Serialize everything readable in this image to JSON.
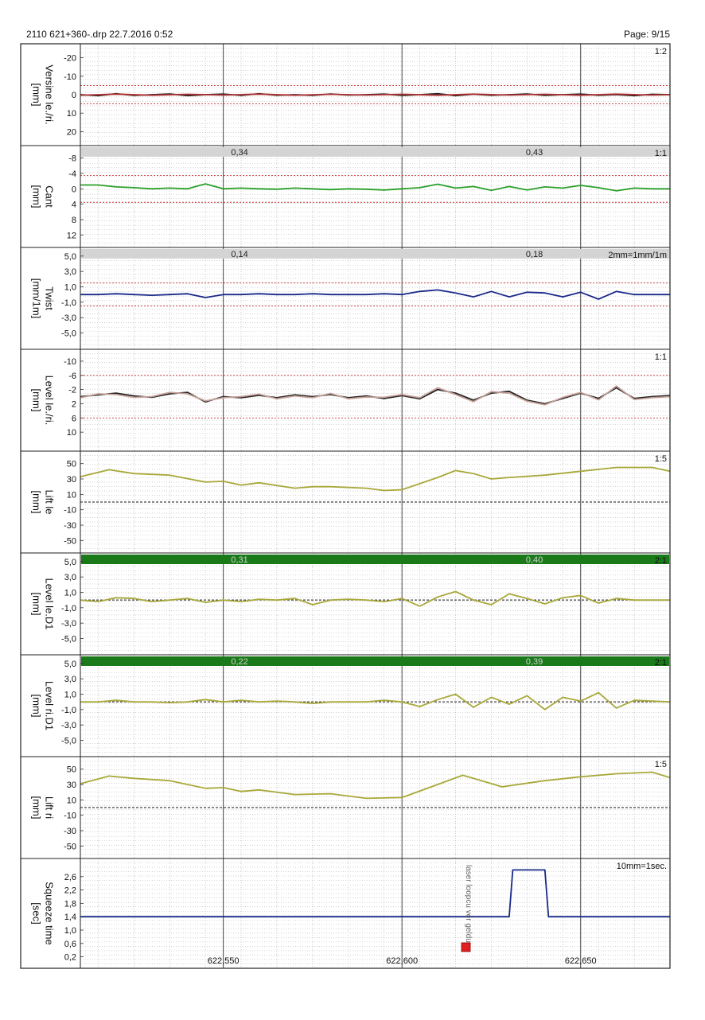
{
  "header": {
    "file_info": "2110 621+360-.drp   22.7.2016  0:52",
    "page": "Page: 9/15"
  },
  "chart_data": [
    {
      "type": "line",
      "ylabel": "Versine le./ri.",
      "unit": "[mm]",
      "scale": "1:2",
      "ylim": [
        -25,
        25
      ],
      "inverted": true,
      "ticks": [
        "-20",
        "-10",
        "0",
        "10",
        "20"
      ],
      "tick_values": [
        -20,
        -10,
        0,
        10,
        20
      ],
      "limits": [
        -5,
        5
      ],
      "bar": null,
      "series": [
        {
          "color": "#222222",
          "x": [
            622510,
            622515,
            622520,
            622525,
            622530,
            622535,
            622540,
            622545,
            622550,
            622555,
            622560,
            622565,
            622570,
            622575,
            622580,
            622585,
            622590,
            622595,
            622600,
            622605,
            622610,
            622615,
            622620,
            622625,
            622630,
            622635,
            622640,
            622645,
            622650,
            622655,
            622660,
            622665,
            622670,
            622675
          ],
          "values": [
            0,
            0.5,
            -0.5,
            0.4,
            0,
            -0.4,
            0.5,
            0,
            -0.3,
            0.4,
            -0.5,
            0.3,
            0,
            0.4,
            -0.4,
            0.2,
            0,
            -0.3,
            0.4,
            0,
            -0.5,
            0.5,
            -0.2,
            0.3,
            0,
            -0.4,
            0.4,
            0,
            -0.3,
            0.3,
            0,
            0.5,
            -0.2,
            0
          ]
        },
        {
          "color": "#b03030",
          "x": [
            622510,
            622520,
            622530,
            622540,
            622550,
            622560,
            622570,
            622580,
            622590,
            622600,
            622610,
            622620,
            622630,
            622640,
            622650,
            622660,
            622670,
            622675
          ],
          "values": [
            0.3,
            -0.3,
            0.3,
            -0.2,
            0.2,
            -0.3,
            0.3,
            -0.2,
            0.2,
            -0.2,
            0.3,
            -0.3,
            0.2,
            -0.2,
            0.3,
            -0.3,
            0.2,
            0
          ]
        }
      ]
    },
    {
      "type": "line",
      "ylabel": "Cant",
      "unit": "[mm]",
      "scale": "1:1",
      "ylim": [
        -10,
        14
      ],
      "inverted": true,
      "ticks": [
        "-8",
        "-4",
        "0",
        "4",
        "8",
        "12"
      ],
      "tick_values": [
        -8,
        -4,
        0,
        4,
        8,
        12
      ],
      "limits": [
        -3.5,
        3.5
      ],
      "bar": {
        "color": "#d4d4d4",
        "labels": [
          "0,34",
          "0,43"
        ]
      },
      "series": [
        {
          "color": "#2aa02a",
          "x": [
            622510,
            622515,
            622520,
            622525,
            622530,
            622535,
            622540,
            622545,
            622550,
            622555,
            622560,
            622565,
            622570,
            622575,
            622580,
            622585,
            622590,
            622595,
            622600,
            622605,
            622610,
            622615,
            622620,
            622625,
            622630,
            622635,
            622640,
            622645,
            622650,
            622655,
            622660,
            622665,
            622670,
            622675
          ],
          "values": [
            -1,
            -1,
            -0.5,
            -0.3,
            0,
            -0.2,
            0,
            -1.3,
            0,
            -0.2,
            0,
            0.1,
            -0.2,
            0,
            0.2,
            0,
            0.1,
            0.3,
            0,
            -0.3,
            -1.2,
            -0.2,
            -0.6,
            0.4,
            -0.6,
            0.3,
            -0.5,
            -0.2,
            -0.9,
            -0.3,
            0.5,
            -0.2,
            0,
            0
          ]
        }
      ]
    },
    {
      "type": "line",
      "ylabel": "Twist",
      "unit": "[mm/1m]",
      "scale": "2mm=1mm/1m",
      "ylim": [
        -6.5,
        5.5
      ],
      "inverted": false,
      "ticks": [
        "5,0",
        "3,0",
        "1,0",
        "-1,0",
        "-3,0",
        "-5,0"
      ],
      "tick_values": [
        5,
        3,
        1,
        -1,
        -3,
        -5
      ],
      "limits": [
        -1.5,
        1.5
      ],
      "bar": {
        "color": "#d4d4d4",
        "labels": [
          "0,14",
          "0,18"
        ]
      },
      "series": [
        {
          "color": "#1a2a8a",
          "x": [
            622510,
            622515,
            622520,
            622525,
            622530,
            622535,
            622540,
            622545,
            622550,
            622555,
            622560,
            622565,
            622570,
            622575,
            622580,
            622585,
            622590,
            622595,
            622600,
            622605,
            622610,
            622615,
            622620,
            622625,
            622630,
            622635,
            622640,
            622645,
            622650,
            622655,
            622660,
            622665,
            622670,
            622675
          ],
          "values": [
            0,
            0,
            0.1,
            0,
            -0.1,
            0,
            0.1,
            -0.4,
            0,
            0,
            0.1,
            0,
            0,
            0.1,
            0,
            0,
            0,
            0.1,
            0,
            0.4,
            0.6,
            0.2,
            -0.3,
            0.4,
            -0.3,
            0.3,
            0.2,
            -0.3,
            0.3,
            -0.6,
            0.4,
            0,
            0,
            0
          ]
        }
      ]
    },
    {
      "type": "line",
      "ylabel": "Level le./ri.",
      "unit": "[mm]",
      "scale": "1:1",
      "ylim": [
        -12,
        14
      ],
      "inverted": true,
      "ticks": [
        "-10",
        "-6",
        "-2",
        "2",
        "6",
        "10"
      ],
      "tick_values": [
        -10,
        -6,
        -2,
        2,
        6,
        10
      ],
      "limits": [
        -6,
        6
      ],
      "bar": null,
      "series": [
        {
          "color": "#222222",
          "x": [
            622510,
            622515,
            622520,
            622525,
            622530,
            622535,
            622540,
            622545,
            622550,
            622555,
            622560,
            622565,
            622570,
            622575,
            622580,
            622585,
            622590,
            622595,
            622600,
            622605,
            622610,
            622615,
            622620,
            622625,
            622630,
            622635,
            622640,
            622645,
            622650,
            622655,
            622660,
            622665,
            622670,
            622675
          ],
          "values": [
            0,
            -0.5,
            -1,
            -0.2,
            0.2,
            -0.8,
            -1.2,
            1.5,
            0,
            0.3,
            -0.4,
            0.3,
            -0.5,
            0,
            -0.6,
            0.3,
            -0.2,
            0.5,
            -0.3,
            0.6,
            -2,
            -1,
            1,
            -1,
            -1.5,
            1,
            2,
            0.5,
            -1,
            0.5,
            -2.5,
            0.5,
            0,
            -0.3
          ]
        },
        {
          "color": "#c4a098",
          "x": [
            622510,
            622515,
            622520,
            622525,
            622530,
            622535,
            622540,
            622545,
            622550,
            622555,
            622560,
            622565,
            622570,
            622575,
            622580,
            622585,
            622590,
            622595,
            622600,
            622605,
            622610,
            622615,
            622620,
            622625,
            622630,
            622635,
            622640,
            622645,
            622650,
            622655,
            622660,
            622665,
            622670,
            622675
          ],
          "values": [
            0.3,
            -0.8,
            -0.6,
            0.2,
            0,
            -1.2,
            -0.8,
            1.2,
            0.3,
            0,
            -0.7,
            0.6,
            -0.2,
            0.3,
            -0.9,
            0.6,
            0.1,
            0.2,
            -0.6,
            0.3,
            -2.5,
            -0.6,
            1.4,
            -1.4,
            -1,
            1.3,
            2.3,
            0.2,
            -1.2,
            0.9,
            -3,
            0.8,
            0.3,
            0
          ]
        }
      ]
    },
    {
      "type": "line",
      "ylabel": "Lift le",
      "unit": "[mm]",
      "scale": "1:5",
      "ylim": [
        -60,
        60
      ],
      "inverted": false,
      "ticks": [
        "50",
        "30",
        "10",
        "-10",
        "-30",
        "-50"
      ],
      "tick_values": [
        50,
        30,
        10,
        -10,
        -30,
        -50
      ],
      "limits": null,
      "zero_line": true,
      "bar": null,
      "series": [
        {
          "color": "#a8a83a",
          "x": [
            622510,
            622518,
            622525,
            622535,
            622545,
            622550,
            622555,
            622560,
            622570,
            622575,
            622580,
            622590,
            622595,
            622600,
            622610,
            622615,
            622620,
            622625,
            622630,
            622640,
            622650,
            622660,
            622670,
            622675
          ],
          "values": [
            33,
            42,
            37,
            35,
            26,
            27,
            22,
            25,
            18,
            20,
            20,
            18,
            15,
            16,
            32,
            41,
            37,
            30,
            32,
            35,
            40,
            45,
            45,
            40
          ]
        }
      ]
    },
    {
      "type": "line",
      "ylabel": "Level le.D1",
      "unit": "[mm]",
      "scale": "2:1",
      "ylim": [
        -6.5,
        5.5
      ],
      "inverted": false,
      "ticks": [
        "5,0",
        "3,0",
        "1,0",
        "-1,0",
        "-3,0",
        "-5,0"
      ],
      "tick_values": [
        5,
        3,
        1,
        -1,
        -3,
        -5
      ],
      "limits": null,
      "zero_line": true,
      "bar": {
        "color": "#1a7a1a",
        "labels": [
          "0,31",
          "0,40"
        ]
      },
      "series": [
        {
          "color": "#a8a83a",
          "x": [
            622510,
            622515,
            622520,
            622525,
            622530,
            622535,
            622540,
            622545,
            622550,
            622555,
            622560,
            622565,
            622570,
            622575,
            622580,
            622585,
            622590,
            622595,
            622600,
            622605,
            622610,
            622615,
            622620,
            622625,
            622630,
            622635,
            622640,
            622645,
            622650,
            622655,
            622660,
            622665,
            622670,
            622675
          ],
          "values": [
            0,
            -0.2,
            0.3,
            0.2,
            -0.2,
            0,
            0.2,
            -0.3,
            0,
            -0.2,
            0.1,
            0,
            0.2,
            -0.6,
            0,
            0.1,
            0,
            -0.2,
            0.2,
            -0.8,
            0.4,
            1.1,
            0,
            -0.6,
            0.8,
            0.2,
            -0.5,
            0.3,
            0.6,
            -0.4,
            0.2,
            0,
            0,
            0
          ]
        }
      ]
    },
    {
      "type": "line",
      "ylabel": "Level ri.D1",
      "unit": "[mm]",
      "scale": "2:1",
      "ylim": [
        -6.5,
        5.5
      ],
      "inverted": false,
      "ticks": [
        "5,0",
        "3,0",
        "1,0",
        "-1,0",
        "-3,0",
        "-5,0"
      ],
      "tick_values": [
        5,
        3,
        1,
        -1,
        -3,
        -5
      ],
      "limits": null,
      "zero_line": true,
      "bar": {
        "color": "#1a7a1a",
        "labels": [
          "0,22",
          "0,39"
        ]
      },
      "series": [
        {
          "color": "#a8a83a",
          "x": [
            622510,
            622515,
            622520,
            622525,
            622530,
            622535,
            622540,
            622545,
            622550,
            622555,
            622560,
            622565,
            622570,
            622575,
            622580,
            622585,
            622590,
            622595,
            622600,
            622605,
            622610,
            622615,
            622620,
            622625,
            622630,
            622635,
            622640,
            622645,
            622650,
            622655,
            622660,
            622665,
            622670,
            622675
          ],
          "values": [
            0,
            0,
            0.2,
            0,
            0,
            -0.1,
            0,
            0.3,
            0,
            0.2,
            0,
            0.1,
            0,
            -0.2,
            0,
            0,
            0,
            0.2,
            0,
            -0.6,
            0.3,
            1,
            -0.7,
            0.6,
            -0.3,
            0.8,
            -1,
            0.6,
            0.1,
            1.2,
            -0.8,
            0.2,
            0.1,
            0
          ]
        }
      ]
    },
    {
      "type": "line",
      "ylabel": "Lift ri",
      "unit": "[mm]",
      "scale": "1:5",
      "ylim": [
        -60,
        60
      ],
      "inverted": false,
      "ticks": [
        "50",
        "30",
        "10",
        "-10",
        "-30",
        "-50"
      ],
      "tick_values": [
        50,
        30,
        10,
        -10,
        -30,
        -50
      ],
      "limits": null,
      "zero_line": true,
      "bar": null,
      "series": [
        {
          "color": "#a8a83a",
          "x": [
            622510,
            622518,
            622525,
            622535,
            622545,
            622550,
            622555,
            622560,
            622570,
            622580,
            622590,
            622600,
            622610,
            622617,
            622620,
            622628,
            622640,
            622650,
            622660,
            622670,
            622675
          ],
          "values": [
            31,
            41,
            38,
            35,
            25,
            26,
            21,
            23,
            17,
            18,
            12,
            13,
            30,
            42,
            38,
            27,
            35,
            40,
            44,
            46,
            39
          ]
        }
      ]
    },
    {
      "type": "line",
      "ylabel": "Squeeze time",
      "unit": "[sec]",
      "scale": "10mm=1sec.",
      "ylim": [
        0,
        3
      ],
      "inverted": false,
      "ticks": [
        "2,6",
        "2,2",
        "1,8",
        "1,4",
        "1,0",
        "0,6",
        "0,2"
      ],
      "tick_values": [
        2.6,
        2.2,
        1.8,
        1.4,
        1.0,
        0.6,
        0.2
      ],
      "limits": null,
      "bar": null,
      "annotation": "laser loopcu ver gelduu",
      "series": [
        {
          "color": "#1a2a8a",
          "x": [
            622510,
            622630,
            622631,
            622640,
            622641,
            622675
          ],
          "values": [
            1.4,
            1.4,
            2.8,
            2.8,
            1.4,
            1.4
          ]
        }
      ]
    }
  ],
  "x_axis": {
    "xlim": [
      622510,
      622675
    ],
    "ticks": [
      "622,550",
      "622,600",
      "622,650"
    ],
    "tick_values": [
      622550,
      622600,
      622650
    ]
  },
  "colors": {
    "limit_line": "#c83030",
    "grid": "#8c8c8c",
    "frame": "#222222",
    "marker": "#e02020"
  }
}
